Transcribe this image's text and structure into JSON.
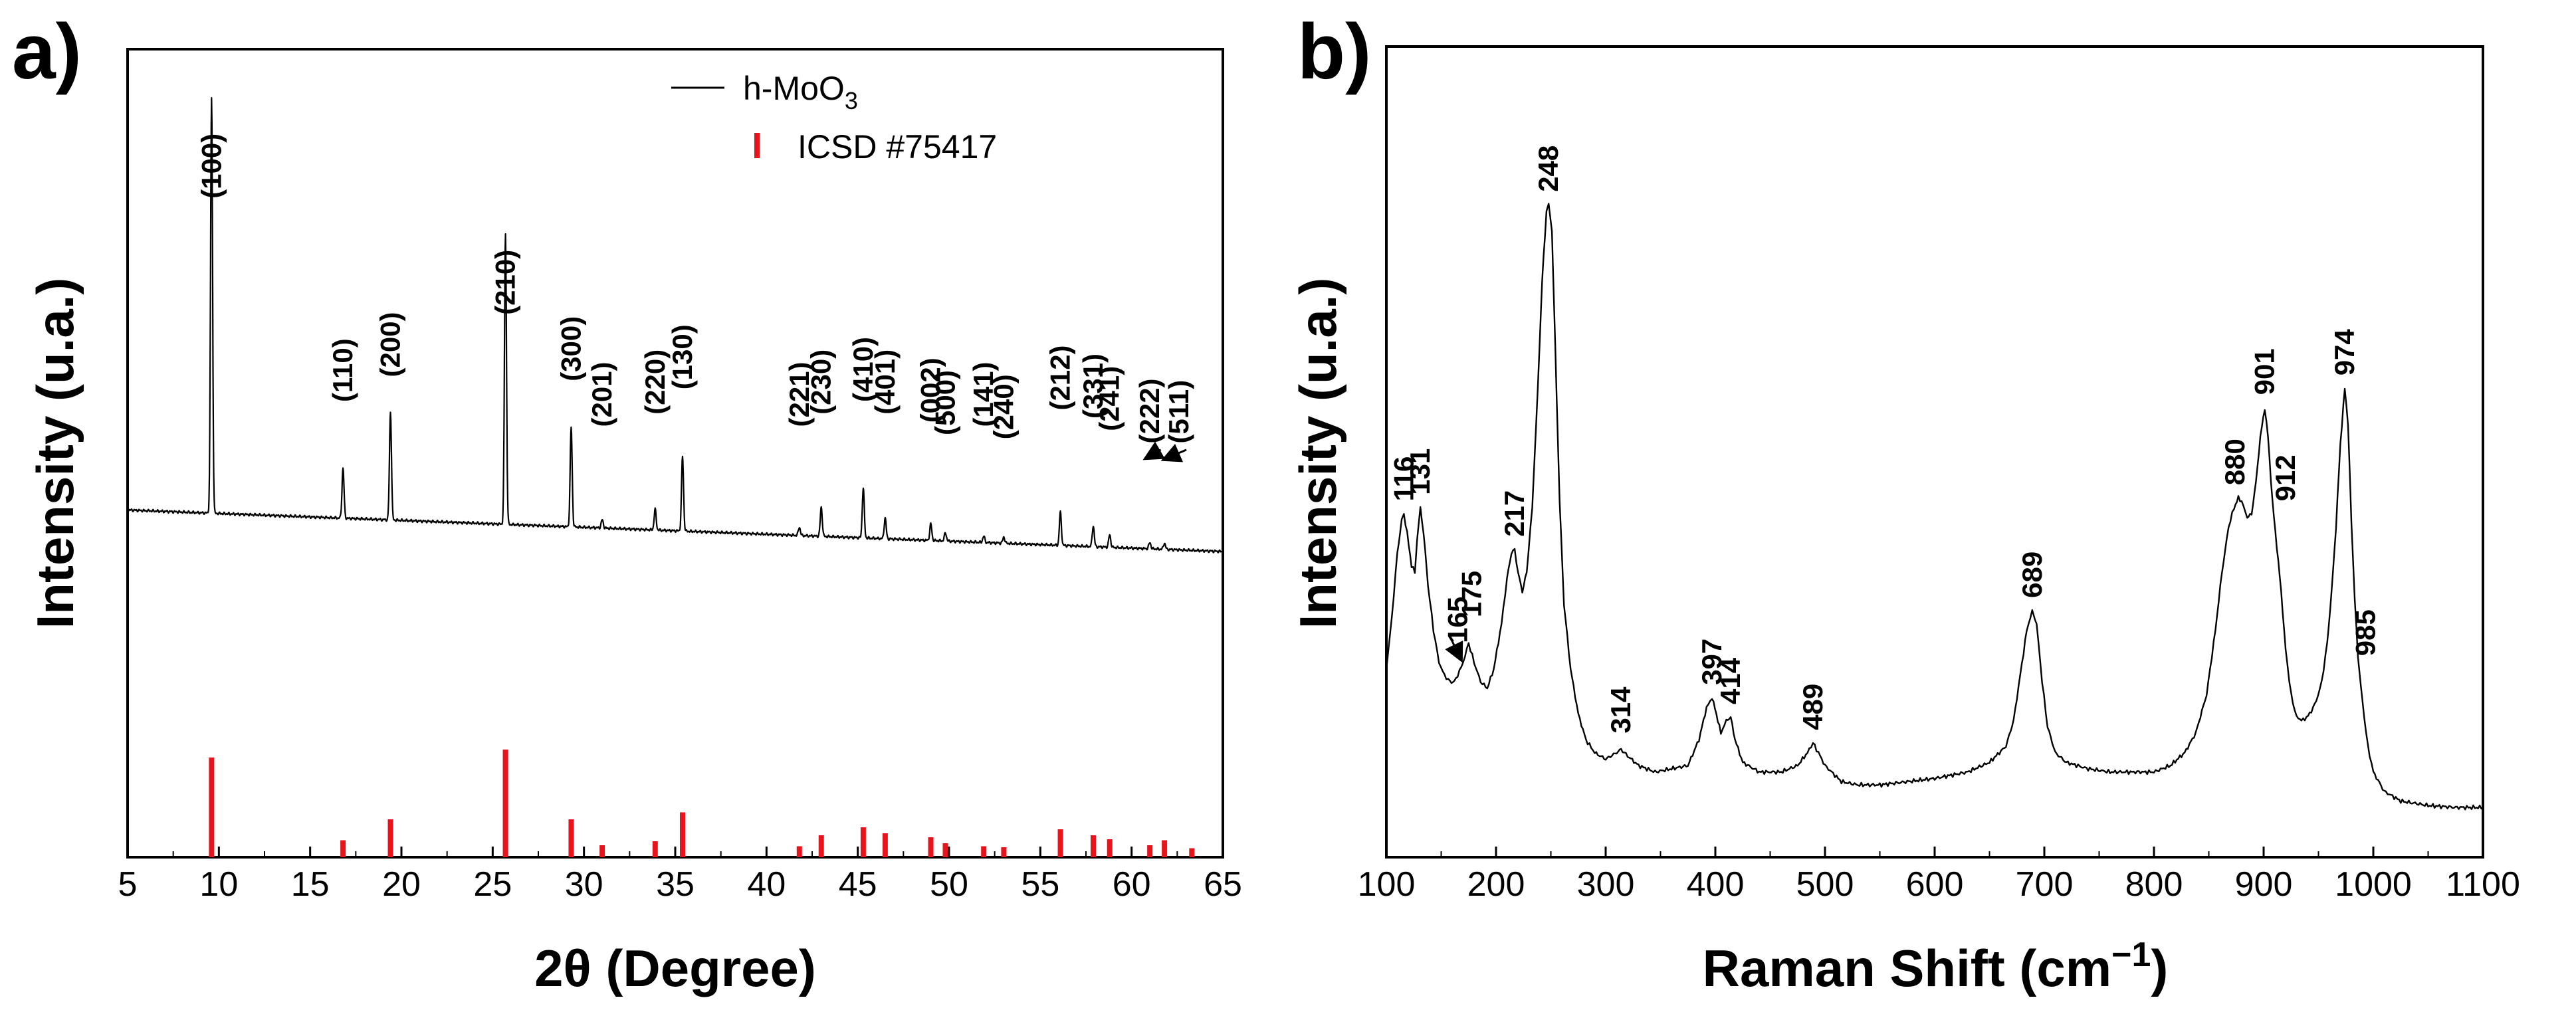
{
  "chart_data": [
    {
      "panel": "a)",
      "type": "line",
      "xlabel": "2θ (Degree)",
      "ylabel": "Intensity (u.a.)",
      "xlim": [
        5,
        65
      ],
      "xticks": [
        5,
        10,
        15,
        20,
        25,
        30,
        35,
        40,
        45,
        50,
        55,
        60,
        65
      ],
      "legend": {
        "position": "top-right",
        "entries": [
          {
            "label_main": "h-MoO",
            "label_sub": "3",
            "style": "line",
            "color": "#000000"
          },
          {
            "label_main": "ICSD #75417",
            "label_sub": "",
            "style": "bar",
            "color": "#e8141b"
          }
        ]
      },
      "series": [
        {
          "name": "h-MoO3",
          "color": "#000000",
          "baseline_start": 10,
          "baseline_end": 0,
          "peaks": [
            {
              "x": 9.6,
              "h": 100,
              "label": "(100)"
            },
            {
              "x": 16.8,
              "h": 12,
              "label": "(110)"
            },
            {
              "x": 19.4,
              "h": 26,
              "label": "(200)"
            },
            {
              "x": 25.7,
              "h": 70,
              "label": "(210)"
            },
            {
              "x": 29.3,
              "h": 24,
              "label": "(300)"
            },
            {
              "x": 31.0,
              "h": 2,
              "label": "(201)"
            },
            {
              "x": 33.9,
              "h": 5,
              "label": "(220)"
            },
            {
              "x": 35.4,
              "h": 18,
              "label": "(130)"
            },
            {
              "x": 41.8,
              "h": 2,
              "label": "(221)"
            },
            {
              "x": 43.0,
              "h": 7,
              "label": "(230)"
            },
            {
              "x": 45.3,
              "h": 12,
              "label": "(410)"
            },
            {
              "x": 46.5,
              "h": 5,
              "label": "(401)"
            },
            {
              "x": 49.0,
              "h": 4,
              "label": "(002)"
            },
            {
              "x": 49.8,
              "h": 2,
              "label": "(500)"
            },
            {
              "x": 51.9,
              "h": 1.5,
              "label": "(141)"
            },
            {
              "x": 53.0,
              "h": 1.5,
              "label": "(240)"
            },
            {
              "x": 56.1,
              "h": 8,
              "label": "(212)"
            },
            {
              "x": 57.9,
              "h": 5,
              "label": "(331)"
            },
            {
              "x": 58.8,
              "h": 3,
              "label": "(241)"
            },
            {
              "x": 61.0,
              "h": 1.5,
              "label": "(222)"
            },
            {
              "x": 61.8,
              "h": 1.5,
              "label": "(511)"
            }
          ]
        },
        {
          "name": "ICSD #75417",
          "color": "#e8141b",
          "style": "stick",
          "positions": [
            9.6,
            16.8,
            19.4,
            25.7,
            29.3,
            31.0,
            33.9,
            35.4,
            41.8,
            43.0,
            45.3,
            46.5,
            49.0,
            49.8,
            51.9,
            53.0,
            56.1,
            57.9,
            58.8,
            61.0,
            61.8,
            63.3
          ],
          "heights": [
            100,
            17,
            38,
            108,
            38,
            12,
            16,
            45,
            11,
            22,
            30,
            24,
            20,
            14,
            11,
            10,
            28,
            22,
            18,
            12,
            17,
            9
          ]
        }
      ],
      "annotations": [
        {
          "text": "(100)",
          "x": 9.6,
          "y": 85,
          "vertical": true
        },
        {
          "text": "(110)",
          "x": 16.8,
          "y": 36,
          "vertical": true
        },
        {
          "text": "(200)",
          "x": 19.4,
          "y": 42,
          "vertical": true
        },
        {
          "text": "(210)",
          "x": 25.7,
          "y": 57,
          "vertical": true
        },
        {
          "text": "(300)",
          "x": 29.3,
          "y": 41,
          "vertical": true
        },
        {
          "text": "(201)",
          "x": 31.0,
          "y": 30,
          "vertical": true
        },
        {
          "text": "(220)",
          "x": 33.9,
          "y": 33,
          "vertical": true
        },
        {
          "text": "(130)",
          "x": 35.4,
          "y": 39,
          "vertical": true
        },
        {
          "text": "(221)",
          "x": 41.8,
          "y": 30,
          "vertical": true
        },
        {
          "text": "(230)",
          "x": 43.0,
          "y": 33,
          "vertical": true
        },
        {
          "text": "(410)",
          "x": 45.3,
          "y": 36,
          "vertical": true
        },
        {
          "text": "(401)",
          "x": 46.5,
          "y": 33,
          "vertical": true
        },
        {
          "text": "(002)",
          "x": 49.0,
          "y": 31,
          "vertical": true
        },
        {
          "text": "(500)",
          "x": 49.8,
          "y": 28,
          "vertical": true
        },
        {
          "text": "(141)",
          "x": 51.9,
          "y": 30,
          "vertical": true
        },
        {
          "text": "(240)",
          "x": 53.0,
          "y": 27,
          "vertical": true
        },
        {
          "text": "(212)",
          "x": 56.1,
          "y": 34,
          "vertical": true
        },
        {
          "text": "(331)",
          "x": 57.9,
          "y": 32,
          "vertical": true
        },
        {
          "text": "(241)",
          "x": 58.8,
          "y": 29,
          "vertical": true
        },
        {
          "text": "(222)",
          "x": 61.0,
          "y": 26,
          "vertical": true
        },
        {
          "text": "(511)",
          "x": 62.6,
          "y": 26,
          "vertical": true
        }
      ],
      "arrows": [
        {
          "from": [
            61.6,
            24.5
          ],
          "to": [
            60.8,
            22.5
          ]
        },
        {
          "from": [
            63.0,
            24.5
          ],
          "to": [
            61.8,
            22.2
          ]
        }
      ]
    },
    {
      "panel": "b)",
      "type": "line",
      "xlabel": "Raman Shift (cm",
      "xlabel_sup": "−1",
      "xlabel_suffix": ")",
      "ylabel": "Intensity (u.a.)",
      "xlim": [
        100,
        1100
      ],
      "ylim": [
        0,
        100
      ],
      "xticks": [
        100,
        200,
        300,
        400,
        500,
        600,
        700,
        800,
        900,
        1000,
        1100
      ],
      "series": [
        {
          "name": "Raman spectrum",
          "color": "#000000",
          "points": [
            [
              100,
              22
            ],
            [
              105,
              30
            ],
            [
              110,
              40
            ],
            [
              114,
              45
            ],
            [
              116,
              46
            ],
            [
              119,
              43
            ],
            [
              123,
              38
            ],
            [
              126,
              37
            ],
            [
              128,
              42
            ],
            [
              131,
              47
            ],
            [
              134,
              43
            ],
            [
              138,
              35
            ],
            [
              143,
              28
            ],
            [
              148,
              23
            ],
            [
              153,
              21
            ],
            [
              158,
              20
            ],
            [
              162,
              20
            ],
            [
              165,
              21
            ],
            [
              170,
              23
            ],
            [
              175,
              26
            ],
            [
              180,
              23
            ],
            [
              186,
              20
            ],
            [
              192,
              19
            ],
            [
              198,
              22
            ],
            [
              205,
              29
            ],
            [
              210,
              36
            ],
            [
              214,
              40
            ],
            [
              217,
              40.5
            ],
            [
              220,
              37
            ],
            [
              224,
              34
            ],
            [
              228,
              37
            ],
            [
              233,
              47
            ],
            [
              238,
              65
            ],
            [
              242,
              82
            ],
            [
              246,
              93
            ],
            [
              248,
              94
            ],
            [
              251,
              90
            ],
            [
              254,
              72
            ],
            [
              258,
              48
            ],
            [
              262,
              32
            ],
            [
              268,
              22
            ],
            [
              275,
              15
            ],
            [
              282,
              11
            ],
            [
              290,
              9
            ],
            [
              300,
              8
            ],
            [
              310,
              9
            ],
            [
              314,
              9.5
            ],
            [
              320,
              8.5
            ],
            [
              330,
              7
            ],
            [
              345,
              6
            ],
            [
              360,
              6.5
            ],
            [
              375,
              7
            ],
            [
              385,
              11
            ],
            [
              392,
              16
            ],
            [
              397,
              17.5
            ],
            [
              401,
              15
            ],
            [
              405,
              12
            ],
            [
              410,
              14
            ],
            [
              414,
              14.5
            ],
            [
              418,
              11
            ],
            [
              425,
              7.5
            ],
            [
              440,
              6
            ],
            [
              460,
              6
            ],
            [
              475,
              7
            ],
            [
              484,
              9
            ],
            [
              489,
              10.5
            ],
            [
              494,
              9
            ],
            [
              500,
              7
            ],
            [
              515,
              4.5
            ],
            [
              530,
              4
            ],
            [
              550,
              4
            ],
            [
              575,
              4.5
            ],
            [
              600,
              5
            ],
            [
              630,
              6
            ],
            [
              650,
              7.5
            ],
            [
              665,
              10
            ],
            [
              672,
              14
            ],
            [
              678,
              21
            ],
            [
              684,
              28
            ],
            [
              689,
              31
            ],
            [
              693,
              29
            ],
            [
              698,
              20
            ],
            [
              703,
              13
            ],
            [
              710,
              9
            ],
            [
              720,
              7.5
            ],
            [
              740,
              6.5
            ],
            [
              760,
              6
            ],
            [
              780,
              6
            ],
            [
              800,
              6
            ],
            [
              815,
              7
            ],
            [
              828,
              9
            ],
            [
              838,
              12
            ],
            [
              848,
              18
            ],
            [
              856,
              28
            ],
            [
              862,
              37
            ],
            [
              868,
              44
            ],
            [
              873,
              47
            ],
            [
              877,
              48.5
            ],
            [
              880,
              48
            ],
            [
              885,
              45.5
            ],
            [
              889,
              46
            ],
            [
              893,
              51
            ],
            [
              897,
              58
            ],
            [
              901,
              62.5
            ],
            [
              904,
              58
            ],
            [
              908,
              48
            ],
            [
              912,
              41
            ],
            [
              916,
              34
            ],
            [
              920,
              25
            ],
            [
              925,
              18
            ],
            [
              930,
              14.5
            ],
            [
              936,
              14
            ],
            [
              942,
              15
            ],
            [
              948,
              17
            ],
            [
              953,
              20
            ],
            [
              958,
              26
            ],
            [
              962,
              34
            ],
            [
              966,
              44
            ],
            [
              970,
              57
            ],
            [
              974,
              65.5
            ],
            [
              977,
              60
            ],
            [
              980,
              45
            ],
            [
              983,
              33
            ],
            [
              986,
              24
            ],
            [
              990,
              17
            ],
            [
              995,
              10
            ],
            [
              1000,
              6
            ],
            [
              1010,
              3
            ],
            [
              1025,
              1.5
            ],
            [
              1050,
              0.8
            ],
            [
              1075,
              0.5
            ],
            [
              1100,
              0.5
            ]
          ]
        }
      ],
      "annotations": [
        {
          "text": "116",
          "x": 116,
          "y": 48
        },
        {
          "text": "131",
          "x": 131,
          "y": 49
        },
        {
          "text": "165",
          "x": 165,
          "y": 26
        },
        {
          "text": "175",
          "x": 178,
          "y": 30
        },
        {
          "text": "217",
          "x": 217,
          "y": 42.5
        },
        {
          "text": "248",
          "x": 248,
          "y": 96
        },
        {
          "text": "314",
          "x": 314,
          "y": 12
        },
        {
          "text": "397",
          "x": 397,
          "y": 19.5
        },
        {
          "text": "414",
          "x": 414,
          "y": 16.5
        },
        {
          "text": "489",
          "x": 489,
          "y": 12.5
        },
        {
          "text": "689",
          "x": 689,
          "y": 33
        },
        {
          "text": "880",
          "x": 874,
          "y": 50.5
        },
        {
          "text": "901",
          "x": 901,
          "y": 64.5
        },
        {
          "text": "912",
          "x": 920,
          "y": 48
        },
        {
          "text": "974",
          "x": 974,
          "y": 67.5
        },
        {
          "text": "985",
          "x": 993,
          "y": 24
        }
      ],
      "arrows": [
        {
          "from": [
            158,
            27
          ],
          "to": [
            168,
            23.5
          ]
        }
      ]
    }
  ]
}
